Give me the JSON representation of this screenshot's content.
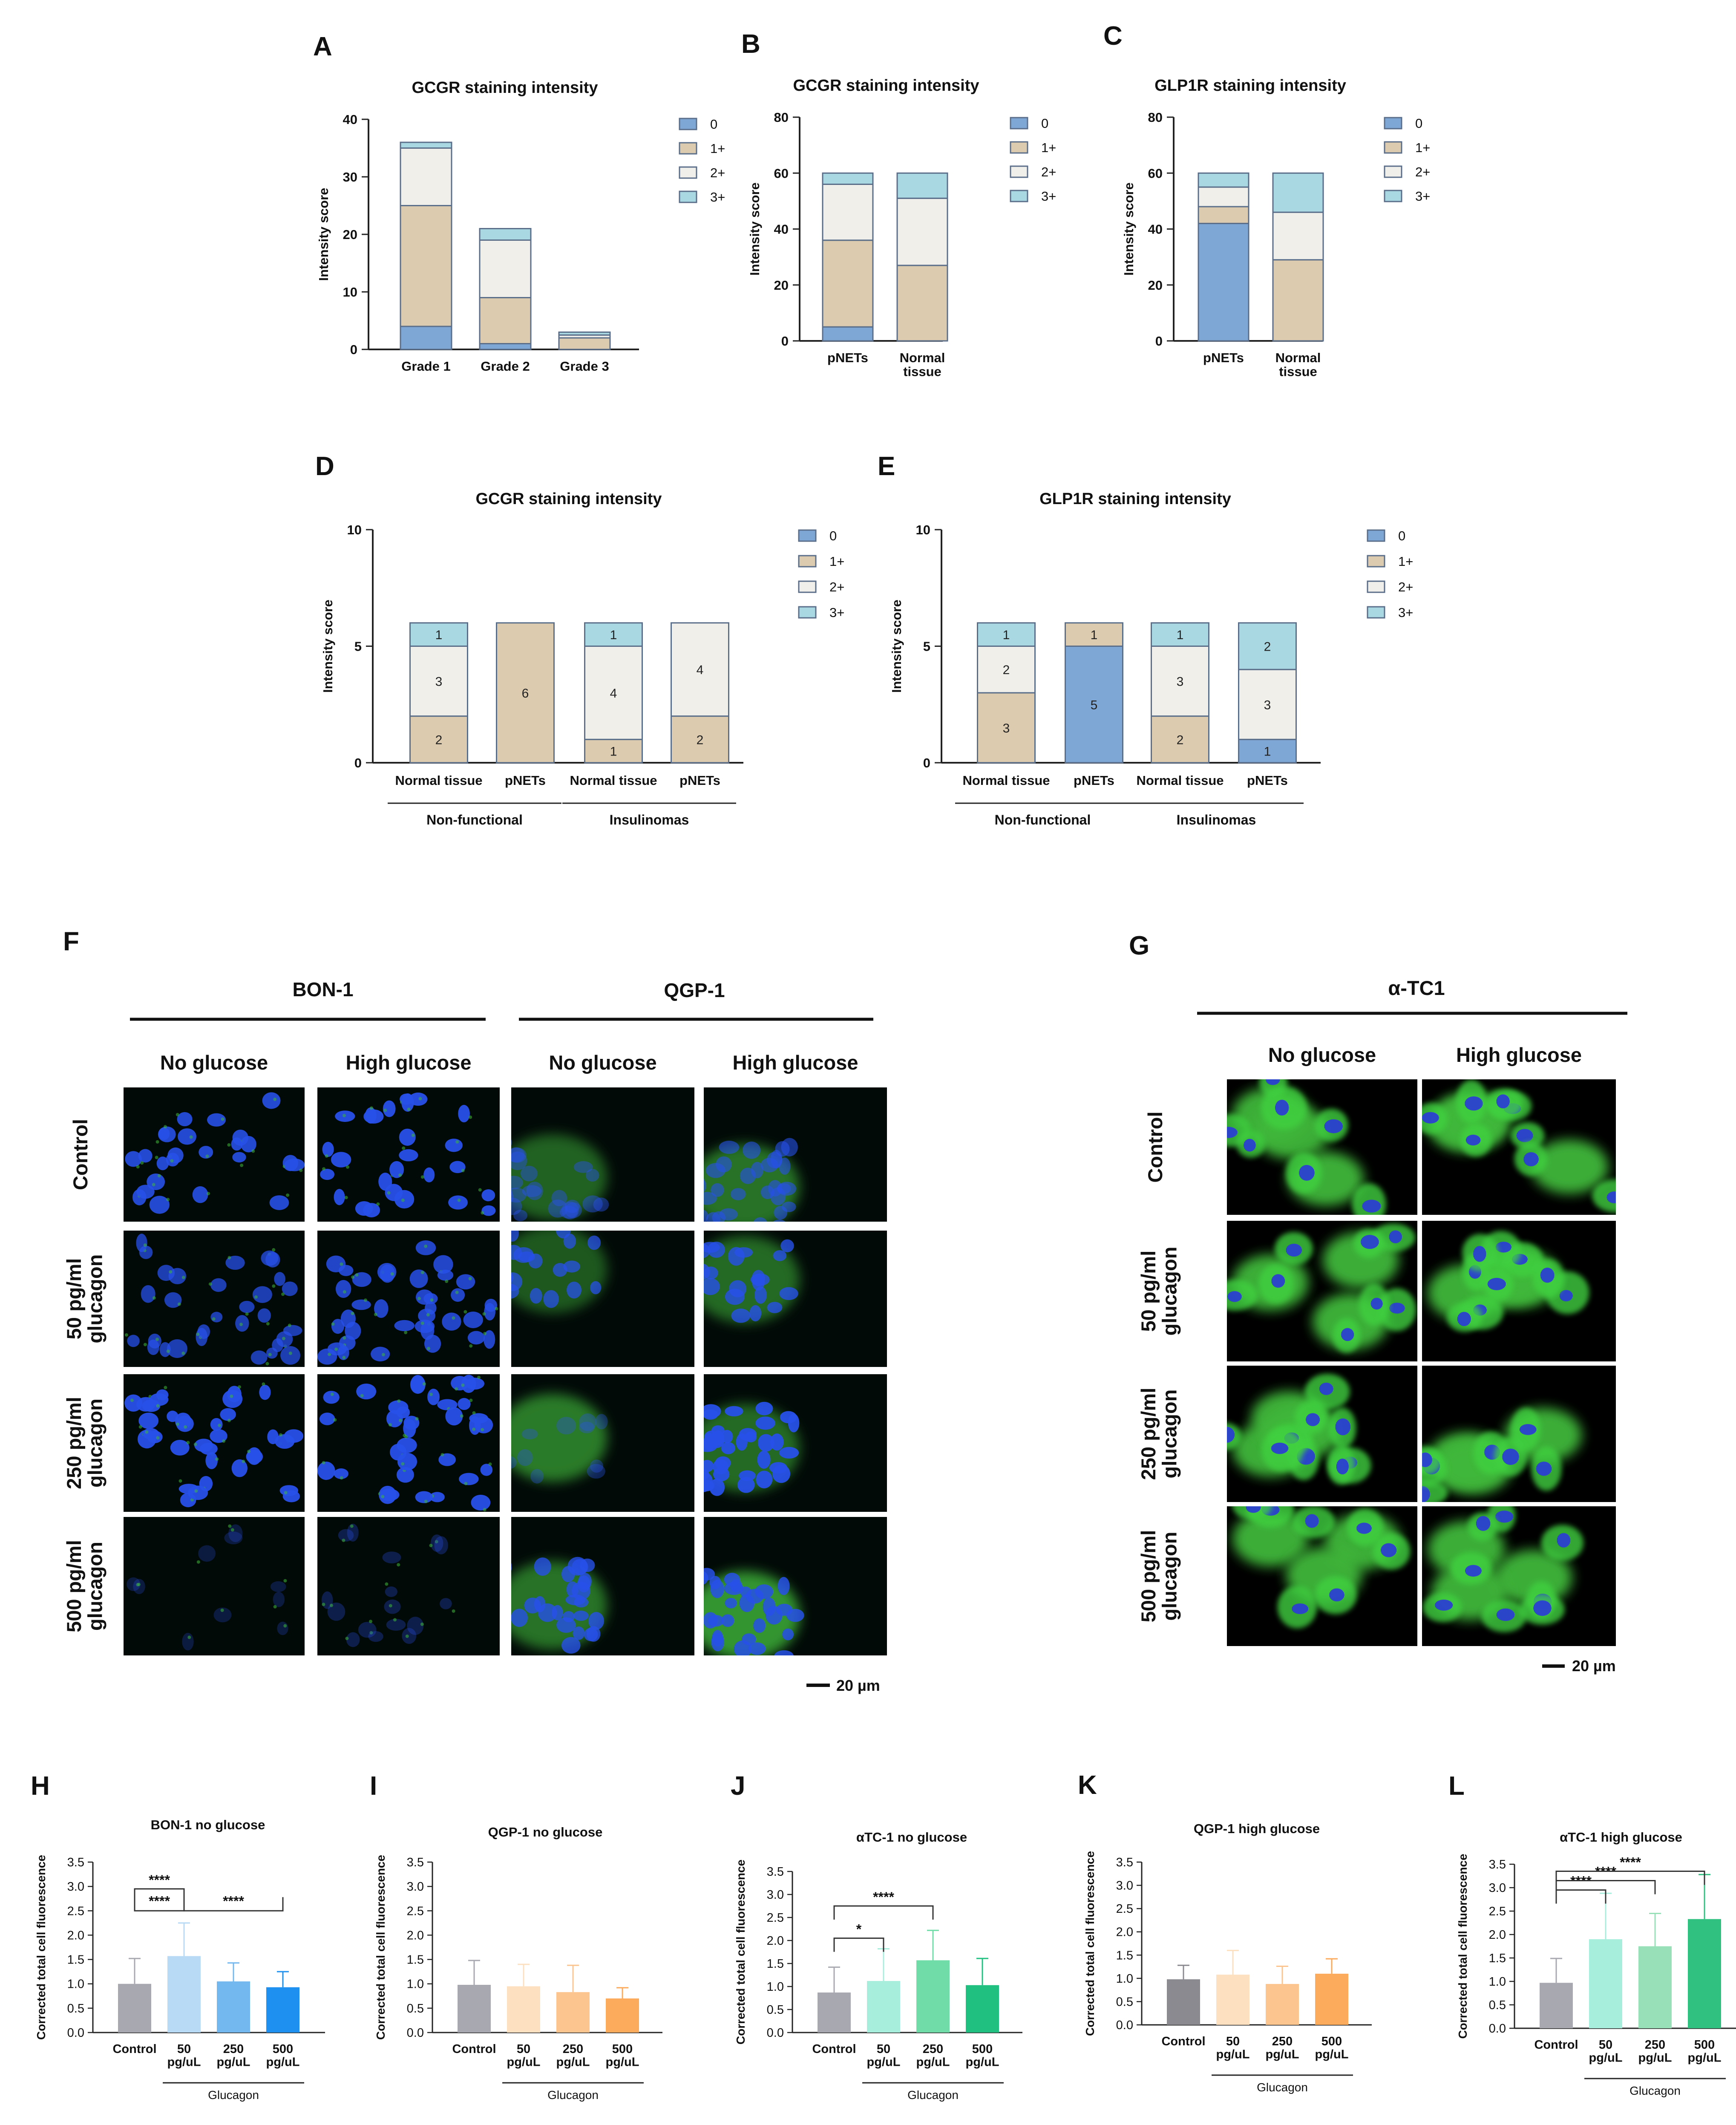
{
  "figure": {
    "panel_letters": [
      "A",
      "B",
      "C",
      "D",
      "E",
      "F",
      "G",
      "H",
      "I",
      "J",
      "K",
      "L"
    ],
    "colors": {
      "c0": "#7fa7d6",
      "c1": "#dccbae",
      "c2": "#f0efea",
      "c3": "#aad8e2",
      "grayBar": "#a8a8b0",
      "outline": "#5a6e8a"
    },
    "legend_labels": [
      "0",
      "1+",
      "2+",
      "3+"
    ],
    "micro": {
      "F": {
        "cell_lines": [
          "BON-1",
          "QGP-1"
        ],
        "conditions": [
          "No glucose",
          "High glucose"
        ],
        "rows": [
          "Control",
          "50 pg/ml glucagon",
          "250 pg/ml glucagon",
          "500 pg/ml glucagon"
        ],
        "scalebar": "20 µm"
      },
      "G": {
        "cell_line": "α-TC1",
        "conditions": [
          "No glucose",
          "High glucose"
        ],
        "rows": [
          "Control",
          "50 pg/ml glucagon",
          "250 pg/ml glucagon",
          "500 pg/ml glucagon"
        ],
        "scalebar": "20 µm"
      }
    }
  },
  "chart_data": [
    {
      "panel": "A",
      "type": "bar",
      "stacked": true,
      "title": "GCGR staining intensity",
      "ylabel": "Intensity score",
      "ylim": [
        0,
        40
      ],
      "yticks": [
        0,
        10,
        20,
        30,
        40
      ],
      "categories": [
        "Grade 1",
        "Grade 2",
        "Grade 3"
      ],
      "series": [
        {
          "name": "0",
          "values": [
            4,
            1,
            0
          ]
        },
        {
          "name": "1+",
          "values": [
            21,
            8,
            2
          ]
        },
        {
          "name": "2+",
          "values": [
            10,
            10,
            0.5
          ]
        },
        {
          "name": "3+",
          "values": [
            1,
            2,
            0.5
          ]
        }
      ]
    },
    {
      "panel": "B",
      "type": "bar",
      "stacked": true,
      "title": "GCGR staining intensity",
      "ylabel": "Intensity score",
      "ylim": [
        0,
        80
      ],
      "yticks": [
        0,
        20,
        40,
        60,
        80
      ],
      "categories": [
        "pNETs",
        "Normal\ntissue"
      ],
      "series": [
        {
          "name": "0",
          "values": [
            5,
            0
          ]
        },
        {
          "name": "1+",
          "values": [
            31,
            27
          ]
        },
        {
          "name": "2+",
          "values": [
            20,
            24
          ]
        },
        {
          "name": "3+",
          "values": [
            4,
            9
          ]
        }
      ]
    },
    {
      "panel": "C",
      "type": "bar",
      "stacked": true,
      "title": "GLP1R staining intensity",
      "ylabel": "Intensity score",
      "ylim": [
        0,
        80
      ],
      "yticks": [
        0,
        20,
        40,
        60,
        80
      ],
      "categories": [
        "pNETs",
        "Normal\ntissue"
      ],
      "series": [
        {
          "name": "0",
          "values": [
            42,
            0
          ]
        },
        {
          "name": "1+",
          "values": [
            6,
            29
          ]
        },
        {
          "name": "2+",
          "values": [
            7,
            17
          ]
        },
        {
          "name": "3+",
          "values": [
            5,
            14
          ]
        }
      ]
    },
    {
      "panel": "D",
      "type": "bar",
      "stacked": true,
      "title": "GCGR staining intensity",
      "ylabel": "Intensity score",
      "ylim": [
        0,
        10
      ],
      "yticks": [
        0,
        5,
        10
      ],
      "categories": [
        "Normal tissue",
        "pNETs",
        "Normal tissue",
        "pNETs"
      ],
      "groups": [
        {
          "label": "Non-functional",
          "span": [
            0,
            1
          ]
        },
        {
          "label": "Insulinomas",
          "span": [
            2,
            3
          ]
        }
      ],
      "series": [
        {
          "name": "0",
          "values": [
            0,
            0,
            0,
            0
          ]
        },
        {
          "name": "1+",
          "values": [
            2,
            6,
            1,
            2
          ]
        },
        {
          "name": "2+",
          "values": [
            3,
            0,
            4,
            4
          ]
        },
        {
          "name": "3+",
          "values": [
            1,
            0,
            1,
            0
          ]
        }
      ]
    },
    {
      "panel": "E",
      "type": "bar",
      "stacked": true,
      "title": "GLP1R staining intensity",
      "ylabel": "Intensity score",
      "ylim": [
        0,
        10
      ],
      "yticks": [
        0,
        5,
        10
      ],
      "categories": [
        "Normal tissue",
        "pNETs",
        "Normal tissue",
        "pNETs"
      ],
      "groups": [
        {
          "label": "Non-functional",
          "span": [
            0,
            1
          ]
        },
        {
          "label": "Insulinomas",
          "span": [
            2,
            3
          ]
        }
      ],
      "series": [
        {
          "name": "0",
          "values": [
            0,
            5,
            0,
            1
          ]
        },
        {
          "name": "1+",
          "values": [
            3,
            1,
            2,
            0
          ]
        },
        {
          "name": "2+",
          "values": [
            2,
            0,
            3,
            3
          ]
        },
        {
          "name": "3+",
          "values": [
            1,
            0,
            1,
            2
          ]
        }
      ]
    },
    {
      "panel": "H",
      "type": "bar",
      "title": "BON-1 no glucose",
      "ylabel": "Corrected total cell fluorescence",
      "ylim": [
        0,
        3.5
      ],
      "yticks": [
        "0.0",
        "0.5",
        "1.0",
        "1.5",
        "2.0",
        "2.5",
        "3.0",
        "3.5"
      ],
      "categories": [
        "Control",
        "50\npg/uL",
        "250\npg/uL",
        "500\npg/uL"
      ],
      "group_label": "Glucagon",
      "values": [
        1.0,
        1.57,
        1.05,
        0.93
      ],
      "errors": [
        0.52,
        0.68,
        0.38,
        0.32
      ],
      "colors": [
        "#a8a8b0",
        "#b8daf4",
        "#74b8f0",
        "#1e90f0"
      ],
      "significance": [
        {
          "a": 0,
          "b": 1,
          "label": "****",
          "level": 2.95,
          "ticks": "down"
        },
        {
          "a": 0,
          "b": 1,
          "label": "****",
          "level": 2.5,
          "ticks": "up"
        },
        {
          "a": 1,
          "b": 3,
          "label": "****",
          "level": 2.5,
          "ticks": "up"
        }
      ]
    },
    {
      "panel": "I",
      "type": "bar",
      "title": "QGP-1 no glucose",
      "ylabel": "Corrected total cell fluorescence",
      "ylim": [
        0,
        3.5
      ],
      "yticks": [
        "0.0",
        "0.5",
        "1.0",
        "1.5",
        "2.0",
        "2.5",
        "3.0",
        "3.5"
      ],
      "categories": [
        "Control",
        "50\npg/uL",
        "250\npg/uL",
        "500\npg/uL"
      ],
      "group_label": "Glucagon",
      "values": [
        0.98,
        0.95,
        0.83,
        0.7
      ],
      "errors": [
        0.5,
        0.45,
        0.55,
        0.22
      ],
      "colors": [
        "#a8a8b0",
        "#fce0c0",
        "#fcc590",
        "#fcaa5c"
      ],
      "significance": []
    },
    {
      "panel": "J",
      "type": "bar",
      "title": "αTC-1 no glucose",
      "ylabel": "Corrected total cell fluorescence",
      "ylim": [
        0,
        3.5
      ],
      "yticks": [
        "0.0",
        "0.5",
        "1.0",
        "1.5",
        "2.0",
        "2.5",
        "3.0",
        "3.5"
      ],
      "categories": [
        "Control",
        "50\npg/uL",
        "250\npg/uL",
        "500\npg/uL"
      ],
      "group_label": "Glucagon",
      "values": [
        0.87,
        1.12,
        1.57,
        1.03
      ],
      "errors": [
        0.55,
        0.7,
        0.65,
        0.58
      ],
      "colors": [
        "#a8a8b0",
        "#a8eedc",
        "#70dca8",
        "#20c080"
      ],
      "significance": [
        {
          "a": 0,
          "b": 1,
          "label": "*",
          "level": 2.05,
          "ticks": "down"
        },
        {
          "a": 0,
          "b": 2,
          "label": "****",
          "level": 2.75,
          "ticks": "down"
        }
      ]
    },
    {
      "panel": "K",
      "type": "bar",
      "title": "QGP-1 high glucose",
      "ylabel": "Corrected total cell fluorescence",
      "ylim": [
        0,
        3.5
      ],
      "yticks": [
        "0.0",
        "0.5",
        "1.0",
        "1.5",
        "2.0",
        "2.5",
        "3.0",
        "3.5"
      ],
      "categories": [
        "Control",
        "50\npg/uL",
        "250\npg/uL",
        "500\npg/uL"
      ],
      "group_label": "Glucagon",
      "values": [
        0.98,
        1.08,
        0.88,
        1.1
      ],
      "errors": [
        0.3,
        0.52,
        0.38,
        0.32
      ],
      "colors": [
        "#8a8a90",
        "#fce0c0",
        "#fcc590",
        "#fcaa5c"
      ],
      "significance": []
    },
    {
      "panel": "L",
      "type": "bar",
      "title": "αTC-1 high glucose",
      "ylabel": "Corrected total cell fluorescence",
      "ylim": [
        0,
        3.5
      ],
      "yticks": [
        "0.0",
        "0.5",
        "1.0",
        "1.5",
        "2.0",
        "2.5",
        "3.0",
        "3.5"
      ],
      "categories": [
        "Control",
        "50\npg/uL",
        "250\npg/uL",
        "500\npg/uL"
      ],
      "group_label": "Glucagon",
      "values": [
        0.97,
        1.9,
        1.75,
        2.33
      ],
      "errors": [
        0.52,
        0.98,
        0.7,
        0.95
      ],
      "colors": [
        "#a8a8b0",
        "#a8eedc",
        "#98e0b8",
        "#30c080"
      ],
      "significance": [
        {
          "a": 0,
          "b": 1,
          "label": "****",
          "level": 2.95,
          "ticks": "down"
        },
        {
          "a": 0,
          "b": 2,
          "label": "****",
          "level": 3.15,
          "ticks": "down"
        },
        {
          "a": 0,
          "b": 3,
          "label": "****",
          "level": 3.35,
          "ticks": "down"
        }
      ]
    }
  ]
}
